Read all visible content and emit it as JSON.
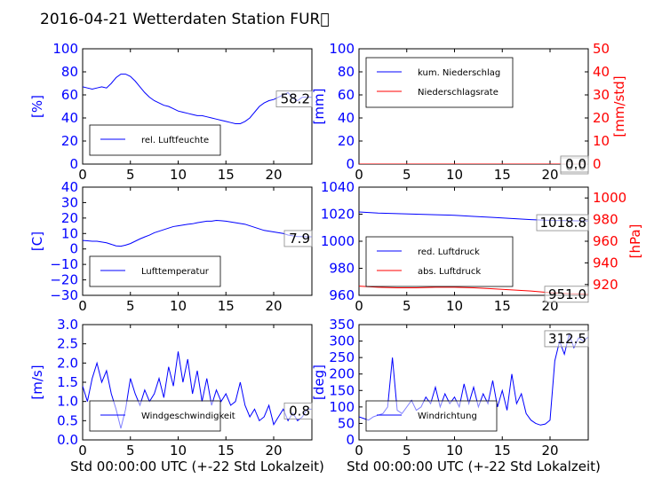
{
  "title": "2016-04-21 Wetterdaten Station FUR\u0000",
  "colors": {
    "left_axis": "#0000ff",
    "right_axis": "#ff0000",
    "series_blue": "#0000ff",
    "series_red": "#ff0000"
  },
  "chart_data": [
    {
      "type": "line",
      "ylabel": "[%]",
      "xlim": [
        0,
        24
      ],
      "ylim": [
        0,
        100
      ],
      "xticks": [
        "0",
        "5",
        "10",
        "15",
        "20"
      ],
      "yticks": [
        "0",
        "20",
        "40",
        "60",
        "80",
        "100"
      ],
      "annotation": "58.2",
      "legend": {
        "placement": "lower-left",
        "entries": [
          "rel. Luftfeuchte"
        ]
      },
      "series": [
        {
          "name": "rel. Luftfeuchte",
          "color": "#0000ff",
          "x": [
            0,
            0.5,
            1,
            1.5,
            2,
            2.5,
            3,
            3.5,
            4,
            4.5,
            5,
            5.5,
            6,
            6.5,
            7,
            7.5,
            8,
            8.5,
            9,
            9.5,
            10,
            10.5,
            11,
            11.5,
            12,
            12.5,
            13,
            13.5,
            14,
            14.5,
            15,
            15.5,
            16,
            16.5,
            17,
            17.5,
            18,
            18.5,
            19,
            19.5,
            20,
            20.5,
            21,
            21.5,
            22,
            22.5,
            23,
            23.5,
            24
          ],
          "y": [
            67,
            66,
            65,
            66,
            67,
            66,
            70,
            75,
            78,
            78,
            76,
            72,
            67,
            62,
            58,
            55,
            53,
            51,
            50,
            48,
            46,
            45,
            44,
            43,
            42,
            42,
            41,
            40,
            39,
            38,
            37,
            36,
            35,
            35,
            37,
            40,
            45,
            50,
            53,
            55,
            56,
            58,
            60,
            62,
            57,
            55,
            58,
            58,
            58
          ]
        }
      ]
    },
    {
      "type": "line",
      "ylabel": "[mm]",
      "ylabel_right": "[mm/std]",
      "xlim": [
        0,
        24
      ],
      "ylim": [
        0,
        100
      ],
      "ylim_right": [
        0,
        50
      ],
      "xticks": [
        "0",
        "5",
        "10",
        "15",
        "20"
      ],
      "yticks": [
        "0",
        "20",
        "40",
        "60",
        "80",
        "100"
      ],
      "yticks_right": [
        "0",
        "10",
        "20",
        "30",
        "40",
        "50"
      ],
      "annotation": "0.0",
      "annotation2": "0.0",
      "legend": {
        "placement": "upper-left",
        "entries": [
          "kum. Niederschlag",
          "Niederschlagsrate"
        ]
      },
      "series": [
        {
          "name": "kum. Niederschlag",
          "color": "#0000ff",
          "x": [
            0,
            24
          ],
          "y": [
            0,
            0
          ]
        },
        {
          "name": "Niederschlagsrate",
          "color": "#ff0000",
          "x": [
            0,
            24
          ],
          "y": [
            0,
            0
          ]
        }
      ]
    },
    {
      "type": "line",
      "ylabel": "[C]",
      "xlim": [
        0,
        24
      ],
      "ylim": [
        -30,
        40
      ],
      "xticks": [
        "0",
        "5",
        "10",
        "15",
        "20"
      ],
      "yticks": [
        "−30",
        "−20",
        "−10",
        "0",
        "10",
        "20",
        "30",
        "40"
      ],
      "annotation": "7.9",
      "legend": {
        "placement": "lower-left",
        "entries": [
          "Lufttemperatur"
        ]
      },
      "series": [
        {
          "name": "Lufttemperatur",
          "color": "#0000ff",
          "x": [
            0,
            0.5,
            1,
            1.5,
            2,
            2.5,
            3,
            3.5,
            4,
            4.5,
            5,
            5.5,
            6,
            6.5,
            7,
            7.5,
            8,
            8.5,
            9,
            9.5,
            10,
            10.5,
            11,
            11.5,
            12,
            12.5,
            13,
            13.5,
            14,
            14.5,
            15,
            15.5,
            16,
            16.5,
            17,
            17.5,
            18,
            18.5,
            19,
            19.5,
            20,
            20.5,
            21,
            21.5,
            22,
            22.5,
            23,
            23.5,
            24
          ],
          "y": [
            5.5,
            5.3,
            5,
            5,
            4.5,
            4,
            3,
            2,
            1.8,
            2.5,
            3.5,
            5,
            6.5,
            7.8,
            9,
            10.5,
            11.5,
            12.5,
            13.5,
            14.5,
            15,
            15.5,
            16,
            16.3,
            17,
            17.5,
            18,
            18,
            18.5,
            18.3,
            18,
            17.5,
            17,
            16.5,
            16,
            15,
            14,
            13,
            12,
            11.5,
            11,
            10.5,
            10,
            9,
            8.5,
            8,
            8,
            7.9,
            7.9
          ]
        }
      ]
    },
    {
      "type": "line",
      "ylabel_right": "[hPa]",
      "xlim": [
        0,
        24
      ],
      "ylim": [
        950,
        1050
      ],
      "ylim_right": [
        910,
        1010
      ],
      "xticks": [
        "0",
        "5",
        "10",
        "15",
        "20"
      ],
      "yticks": [
        "960",
        "980",
        "1000",
        "1020",
        "1040"
      ],
      "yticks_right": [
        "920",
        "940",
        "960",
        "980",
        "1000"
      ],
      "annotation": "1018.8",
      "annotation2": "951.0",
      "legend": {
        "placement": "lower-left",
        "entries": [
          "red. Luftdruck",
          "abs. Luftdruck"
        ]
      },
      "series": [
        {
          "name": "red. Luftdruck",
          "color": "#0000ff",
          "x": [
            0,
            2,
            4,
            6,
            8,
            10,
            12,
            14,
            16,
            18,
            20,
            22,
            24
          ],
          "y": [
            1027,
            1026,
            1025.5,
            1025,
            1024.5,
            1024,
            1023,
            1022,
            1021,
            1020,
            1019.3,
            1019,
            1018.8
          ]
        },
        {
          "name": "abs. Luftdruck",
          "color": "#ff0000",
          "x": [
            0,
            2,
            4,
            6,
            8,
            10,
            12,
            14,
            16,
            18,
            20,
            22,
            24
          ],
          "y": [
            958.5,
            957.5,
            957,
            957,
            957.5,
            957.5,
            957,
            956,
            955,
            954,
            952.5,
            951.5,
            951.0
          ]
        }
      ]
    },
    {
      "type": "line",
      "ylabel": "[m/s]",
      "xlabel": "Std 00:00:00 UTC (+-22 Std Lokalzeit)",
      "xlim": [
        0,
        24
      ],
      "ylim": [
        0,
        3
      ],
      "xticks": [
        "0",
        "5",
        "10",
        "15",
        "20"
      ],
      "yticks": [
        "0.0",
        "0.5",
        "1.0",
        "1.5",
        "2.0",
        "2.5",
        "3.0"
      ],
      "annotation": "0.8",
      "legend": {
        "placement": "lower-left",
        "entries": [
          "Windgeschwindigkeit"
        ]
      },
      "series": [
        {
          "name": "Windgeschwindigkeit",
          "color": "#0000ff",
          "x": [
            0,
            0.5,
            1,
            1.5,
            2,
            2.5,
            3,
            3.5,
            4,
            4.5,
            5,
            5.5,
            6,
            6.5,
            7,
            7.5,
            8,
            8.5,
            9,
            9.5,
            10,
            10.5,
            11,
            11.5,
            12,
            12.5,
            13,
            13.5,
            14,
            14.5,
            15,
            15.5,
            16,
            16.5,
            17,
            17.5,
            18,
            18.5,
            19,
            19.5,
            20,
            20.5,
            21,
            21.5,
            22,
            22.5,
            23,
            23.5,
            24
          ],
          "y": [
            1.4,
            1.0,
            1.6,
            2.0,
            1.5,
            1.8,
            1.2,
            0.8,
            0.3,
            0.8,
            1.6,
            1.2,
            0.9,
            1.3,
            1.0,
            1.2,
            1.6,
            1.1,
            1.9,
            1.4,
            2.3,
            1.5,
            2.1,
            1.2,
            1.8,
            1.0,
            1.6,
            0.9,
            1.3,
            1.0,
            1.2,
            0.9,
            1.0,
            1.5,
            0.9,
            0.6,
            0.8,
            0.5,
            0.6,
            0.9,
            0.4,
            0.6,
            0.8,
            0.5,
            0.7,
            0.5,
            0.6,
            0.8,
            0.8
          ]
        }
      ]
    },
    {
      "type": "line",
      "ylabel": "[deg]",
      "xlabel": "Std 00:00:00 UTC (+-22 Std Lokalzeit)",
      "xlim": [
        0,
        24
      ],
      "ylim": [
        0,
        350
      ],
      "xticks": [
        "0",
        "5",
        "10",
        "15",
        "20"
      ],
      "yticks": [
        "0",
        "50",
        "100",
        "150",
        "200",
        "250",
        "300",
        "350"
      ],
      "annotation": "312.5",
      "legend": {
        "placement": "lower-left",
        "entries": [
          "Windrichtung"
        ]
      },
      "series": [
        {
          "name": "Windrichtung",
          "color": "#0000ff",
          "x": [
            0,
            0.5,
            1,
            1.5,
            2,
            2.5,
            3,
            3.5,
            4,
            4.5,
            5,
            5.5,
            6,
            6.5,
            7,
            7.5,
            8,
            8.5,
            9,
            9.5,
            10,
            10.5,
            11,
            11.5,
            12,
            12.5,
            13,
            13.5,
            14,
            14.5,
            15,
            15.5,
            16,
            16.5,
            17,
            17.5,
            18,
            18.5,
            19,
            19.5,
            20,
            20.5,
            21,
            21.5,
            22,
            22.5,
            23,
            23.5,
            24
          ],
          "y": [
            70,
            65,
            60,
            70,
            75,
            80,
            100,
            250,
            90,
            80,
            100,
            120,
            90,
            100,
            130,
            110,
            160,
            100,
            140,
            110,
            130,
            100,
            170,
            110,
            160,
            100,
            140,
            110,
            180,
            100,
            150,
            90,
            200,
            110,
            140,
            80,
            60,
            50,
            45,
            48,
            60,
            240,
            300,
            260,
            320,
            280,
            310,
            300,
            312.5
          ]
        }
      ]
    }
  ]
}
